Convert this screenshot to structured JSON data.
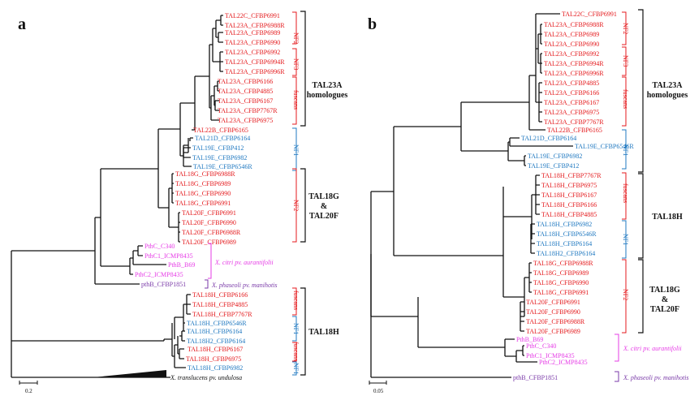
{
  "colors": {
    "red": "#e4191c",
    "blue": "#1f78c0",
    "magenta": "#e63de6",
    "purple": "#7a3aa8",
    "black": "#111111"
  },
  "panel_a": {
    "letter": "a",
    "tips": [
      {
        "label": "TAL22C_CFBP6991",
        "color": "red"
      },
      {
        "label": "TAL23A_CFBP6988R",
        "color": "red"
      },
      {
        "label": "TAL23A_CFBP6989",
        "color": "red"
      },
      {
        "label": "TAL23A_CFBP6990",
        "color": "red"
      },
      {
        "label": "TAL23A_CFBP6992",
        "color": "red"
      },
      {
        "label": "TAL23A_CFBP6994R",
        "color": "red"
      },
      {
        "label": "TAL23A_CFBP6996R",
        "color": "red"
      },
      {
        "label": "TAL23A_CFBP6166",
        "color": "red"
      },
      {
        "label": "TAL23A_CFBP4885",
        "color": "red"
      },
      {
        "label": "TAL23A_CFBP6167",
        "color": "red"
      },
      {
        "label": "TAL23A_CFBP7767R",
        "color": "red"
      },
      {
        "label": "TAL23A_CFBP6975",
        "color": "red"
      },
      {
        "label": "TAL22B_CFBP6165",
        "color": "red"
      },
      {
        "label": "TAL21D_CFBP6164",
        "color": "blue"
      },
      {
        "label": "TAL19E_CFBP412",
        "color": "blue"
      },
      {
        "label": "TAL19E_CFBP6982",
        "color": "blue"
      },
      {
        "label": "TAL19E_CFBP6546R",
        "color": "blue"
      },
      {
        "label": "TAL18G_CFBP6988R",
        "color": "red"
      },
      {
        "label": "TAL18G_CFBP6989",
        "color": "red"
      },
      {
        "label": "TAL18G_CFBP6990",
        "color": "red"
      },
      {
        "label": "TAL18G_CFBP6991",
        "color": "red"
      },
      {
        "label": "TAL20F_CFBP6991",
        "color": "red"
      },
      {
        "label": "TAL20F_CFBP6990",
        "color": "red"
      },
      {
        "label": "TAL20F_CFBP6988R",
        "color": "red"
      },
      {
        "label": "TAL20F_CFBP6989",
        "color": "red"
      },
      {
        "label": "PthC_C340",
        "color": "magenta"
      },
      {
        "label": "PthC1_ICMP8435",
        "color": "magenta"
      },
      {
        "label": "PthB_B69",
        "color": "magenta"
      },
      {
        "label": "PthC2_ICMP8435",
        "color": "magenta"
      },
      {
        "label": "pthB_CFBP1851",
        "color": "purple"
      },
      {
        "label": "TAL18H_CFBP6166",
        "color": "red"
      },
      {
        "label": "TAL18H_CFBP4885",
        "color": "red"
      },
      {
        "label": "TAL18H_CFBP7767R",
        "color": "red"
      },
      {
        "label": "TAL18H_CFBP6546R",
        "color": "blue"
      },
      {
        "label": "TAL18H_CFBP6164",
        "color": "blue"
      },
      {
        "label": "TAL18H2_CFBP6164",
        "color": "blue"
      },
      {
        "label": "TAL18H_CFBP6167",
        "color": "red"
      },
      {
        "label": "TAL18H_CFBP6975",
        "color": "red"
      },
      {
        "label": "TAL18H_CFBP6982",
        "color": "blue"
      }
    ],
    "groups": [
      {
        "label": "NF2",
        "color": "red"
      },
      {
        "label": "NF3",
        "color": "red"
      },
      {
        "label": "fuscans",
        "color": "red"
      },
      {
        "label": "NF1",
        "color": "blue"
      },
      {
        "label": "NF2",
        "color": "red"
      },
      {
        "label": "fuscans",
        "color": "red"
      },
      {
        "label": "NF1",
        "color": "blue"
      },
      {
        "label": "fuscans",
        "color": "red"
      },
      {
        "label": "NF1",
        "color": "blue"
      }
    ],
    "clades": [
      {
        "lines": [
          "TAL23A",
          "homologues"
        ]
      },
      {
        "lines": [
          "TAL18G",
          "&",
          "TAL20F"
        ]
      },
      {
        "lines": [
          "TAL18H"
        ]
      }
    ],
    "species": [
      {
        "label": "X. citri pv. aurantifolii",
        "color": "magenta"
      },
      {
        "label": "X. phaseoli pv. manihotis",
        "color": "purple"
      },
      {
        "label": "X. translucens pv. undulosa",
        "color": "black"
      }
    ],
    "scale": "0.2"
  },
  "panel_b": {
    "letter": "b",
    "tips": [
      {
        "label": "TAL22C_CFBP6991",
        "color": "red"
      },
      {
        "label": "TAL23A_CFBP6988R",
        "color": "red"
      },
      {
        "label": "TAL23A_CFBP6989",
        "color": "red"
      },
      {
        "label": "TAL23A_CFBP6990",
        "color": "red"
      },
      {
        "label": "TAL23A_CFBP6992",
        "color": "red"
      },
      {
        "label": "TAL23A_CFBP6994R",
        "color": "red"
      },
      {
        "label": "TAL23A_CFBP6996R",
        "color": "red"
      },
      {
        "label": "TAL23A_CFBP4885",
        "color": "red"
      },
      {
        "label": "TAL23A_CFBP6166",
        "color": "red"
      },
      {
        "label": "TAL23A_CFBP6167",
        "color": "red"
      },
      {
        "label": "TAL23A_CFBP6975",
        "color": "red"
      },
      {
        "label": "TAL23A_CFBP7767R",
        "color": "red"
      },
      {
        "label": "TAL22B_CFBP6165",
        "color": "red"
      },
      {
        "label": "TAL21D_CFBP6164",
        "color": "blue"
      },
      {
        "label": "TAL19E_CFBP6546R",
        "color": "blue"
      },
      {
        "label": "TAL19E_CFBP6982",
        "color": "blue"
      },
      {
        "label": "TAL19E_CFBP412",
        "color": "blue"
      },
      {
        "label": "TAL18H_CFBP7767R",
        "color": "red"
      },
      {
        "label": "TAL18H_CFBP6975",
        "color": "red"
      },
      {
        "label": "TAL18H_CFBP6167",
        "color": "red"
      },
      {
        "label": "TAL18H_CFBP6166",
        "color": "red"
      },
      {
        "label": "TAL18H_CFBP4885",
        "color": "red"
      },
      {
        "label": "TAL18H_CFBP6982",
        "color": "blue"
      },
      {
        "label": "TAL18H_CFBP6546R",
        "color": "blue"
      },
      {
        "label": "TAL18H_CFBP6164",
        "color": "blue"
      },
      {
        "label": "TAL18H2_CFBP6164",
        "color": "blue"
      },
      {
        "label": "TAL18G_CFBP6988R",
        "color": "red"
      },
      {
        "label": "TAL18G_CFBP6989",
        "color": "red"
      },
      {
        "label": "TAL18G_CFBP6990",
        "color": "red"
      },
      {
        "label": "TAL18G_CFBP6991",
        "color": "red"
      },
      {
        "label": "TAL20F_CFBP6991",
        "color": "red"
      },
      {
        "label": "TAL20F_CFBP6990",
        "color": "red"
      },
      {
        "label": "TAL20F_CFBP6988R",
        "color": "red"
      },
      {
        "label": "TAL20F_CFBP6989",
        "color": "red"
      },
      {
        "label": "PthB_B69",
        "color": "magenta"
      },
      {
        "label": "PthC_C340",
        "color": "magenta"
      },
      {
        "label": "PthC1_ICMP8435",
        "color": "magenta"
      },
      {
        "label": "PthC2_ICMP8435",
        "color": "magenta"
      },
      {
        "label": "pthB_CFBP1851",
        "color": "purple"
      }
    ],
    "groups": [
      {
        "label": "NF2",
        "color": "red"
      },
      {
        "label": "NF3",
        "color": "red"
      },
      {
        "label": "fuscans",
        "color": "red"
      },
      {
        "label": "NF1",
        "color": "blue"
      },
      {
        "label": "fuscans",
        "color": "red"
      },
      {
        "label": "NF1",
        "color": "blue"
      },
      {
        "label": "NF2",
        "color": "red"
      }
    ],
    "clades": [
      {
        "lines": [
          "TAL23A",
          "homologues"
        ]
      },
      {
        "lines": [
          "TAL18H"
        ]
      },
      {
        "lines": [
          "TAL18G",
          "&",
          "TAL20F"
        ]
      }
    ],
    "species": [
      {
        "label": "X. citri pv. aurantifolii",
        "color": "magenta"
      },
      {
        "label": "X. phaseoli pv. manihotis",
        "color": "purple"
      }
    ],
    "scale": "0.05"
  }
}
